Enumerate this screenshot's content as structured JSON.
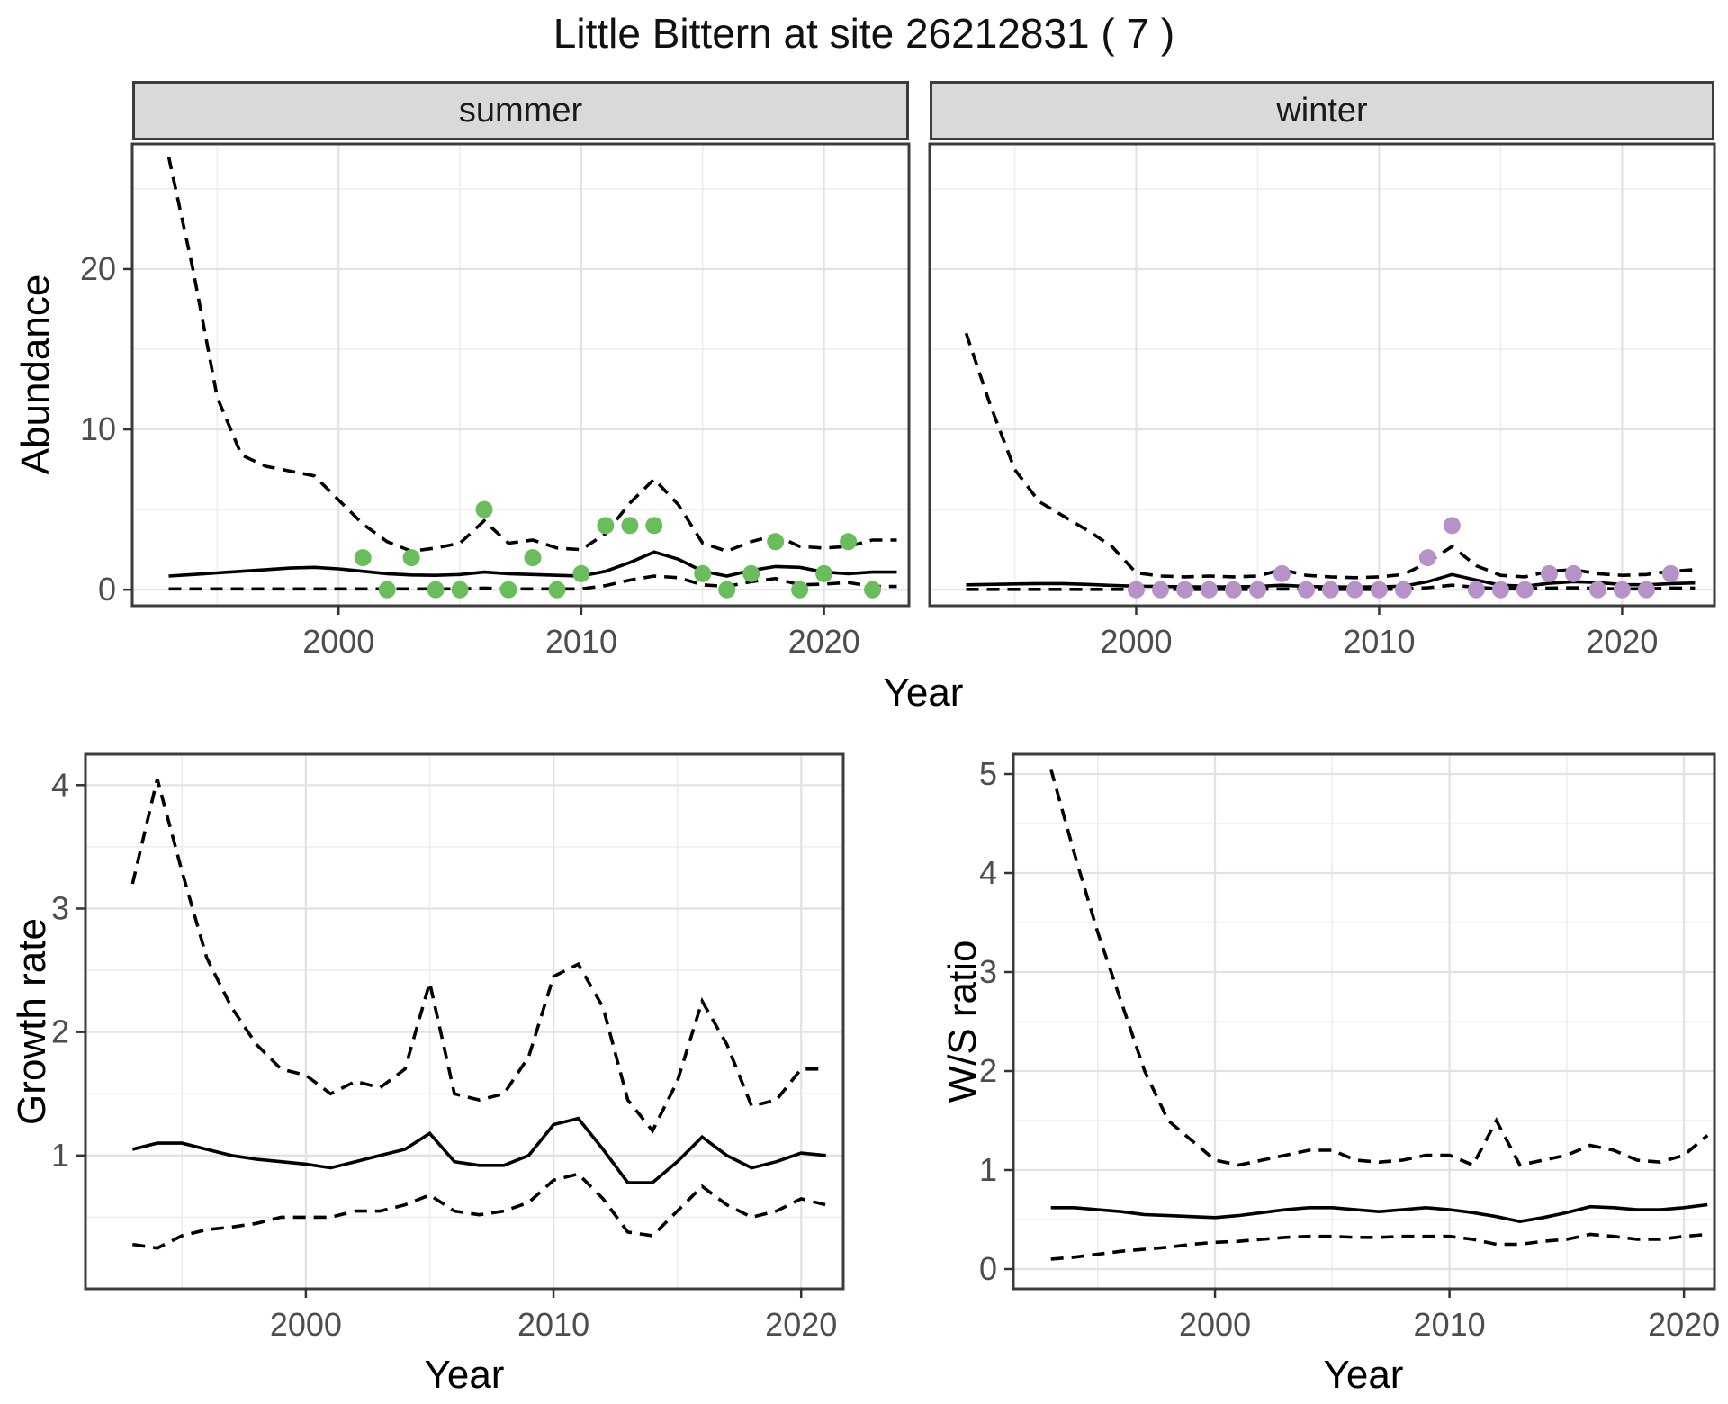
{
  "title": "Little Bittern at site 26212831 ( 7 )",
  "colors": {
    "summer_dot": "#6ABD5B",
    "winter_dot": "#B692C9",
    "fit_line": "#000000",
    "ci_line": "#000000",
    "strip_bg": "#D9D9D9",
    "panel_border": "#3C3C3C",
    "grid_major": "#E2E2E2",
    "grid_minor": "#EDEDED",
    "tick_label": "#4D4D4D",
    "title_text": "#111111"
  },
  "chart_data": [
    {
      "id": "abundance",
      "type": "line",
      "title": "",
      "xlabel": "Year",
      "ylabel": "Abundance",
      "x_ticks": [
        2000,
        2010,
        2020
      ],
      "x_minor": [
        1995,
        2005,
        2015
      ],
      "y_ticks": [
        0,
        10,
        20
      ],
      "y_minor": [
        5,
        15,
        25
      ],
      "xlim": [
        1991.5,
        2023.8
      ],
      "ylim": [
        0,
        27.8
      ],
      "legend": "none",
      "x": [
        1993,
        1994,
        1995,
        1996,
        1997,
        1998,
        1999,
        2000,
        2001,
        2002,
        2003,
        2004,
        2005,
        2006,
        2007,
        2008,
        2009,
        2010,
        2011,
        2012,
        2013,
        2014,
        2015,
        2016,
        2017,
        2018,
        2019,
        2020,
        2021,
        2022,
        2023
      ],
      "facets": [
        {
          "label": "summer",
          "dot_color": "#6ABD5B",
          "fit": [
            0.85,
            0.95,
            1.05,
            1.15,
            1.25,
            1.35,
            1.4,
            1.3,
            1.15,
            1.0,
            0.92,
            0.9,
            0.95,
            1.1,
            1.0,
            0.95,
            0.9,
            0.85,
            1.15,
            1.7,
            2.35,
            1.9,
            1.15,
            0.85,
            1.2,
            1.45,
            1.4,
            1.1,
            1.0,
            1.1,
            1.1
          ],
          "upper": [
            27,
            20,
            12,
            8.4,
            7.7,
            7.4,
            7.1,
            5.6,
            4.1,
            3.0,
            2.4,
            2.6,
            2.9,
            4.3,
            2.9,
            3.1,
            2.6,
            2.5,
            3.5,
            5.4,
            6.9,
            5.3,
            2.9,
            2.4,
            3.0,
            3.4,
            2.7,
            2.6,
            2.7,
            3.1,
            3.1
          ],
          "lower": [
            0.05,
            0.05,
            0.05,
            0.05,
            0.05,
            0.05,
            0.05,
            0.05,
            0.05,
            0.05,
            0.05,
            0.05,
            0.05,
            0.1,
            0.05,
            0.05,
            0.05,
            0.05,
            0.25,
            0.6,
            0.85,
            0.75,
            0.3,
            0.2,
            0.5,
            0.7,
            0.3,
            0.35,
            0.45,
            0.2,
            0.2
          ],
          "obs_x": [
            2001,
            2002,
            2003,
            2004,
            2005,
            2006,
            2007,
            2008,
            2009,
            2010,
            2011,
            2012,
            2013,
            2015,
            2016,
            2017,
            2018,
            2019,
            2020,
            2021,
            2022
          ],
          "obs_y": [
            2,
            0,
            2,
            0,
            0,
            5,
            0,
            2,
            0,
            1,
            4,
            4,
            4,
            1,
            0,
            1,
            3,
            0,
            1,
            3,
            0
          ]
        },
        {
          "label": "winter",
          "dot_color": "#B692C9",
          "fit": [
            0.3,
            0.33,
            0.36,
            0.38,
            0.38,
            0.33,
            0.27,
            0.22,
            0.2,
            0.18,
            0.18,
            0.18,
            0.2,
            0.28,
            0.2,
            0.17,
            0.17,
            0.18,
            0.22,
            0.5,
            0.95,
            0.6,
            0.28,
            0.22,
            0.4,
            0.5,
            0.45,
            0.32,
            0.3,
            0.38,
            0.42
          ],
          "upper": [
            16,
            11.5,
            7.5,
            5.5,
            4.6,
            3.7,
            2.7,
            1.05,
            0.85,
            0.8,
            0.85,
            0.8,
            0.85,
            1.25,
            0.9,
            0.8,
            0.75,
            0.8,
            0.95,
            1.7,
            2.7,
            1.5,
            0.9,
            0.8,
            1.15,
            1.25,
            1.0,
            0.9,
            0.95,
            1.15,
            1.25
          ],
          "lower": [
            0.02,
            0.02,
            0.02,
            0.02,
            0.02,
            0.02,
            0.02,
            0.02,
            0.02,
            0.02,
            0.02,
            0.02,
            0.02,
            0.05,
            0.02,
            0.02,
            0.02,
            0.02,
            0.05,
            0.12,
            0.28,
            0.15,
            0.05,
            0.05,
            0.1,
            0.12,
            0.08,
            0.05,
            0.05,
            0.1,
            0.1
          ],
          "obs_x": [
            2000,
            2001,
            2002,
            2003,
            2004,
            2005,
            2006,
            2007,
            2008,
            2009,
            2010,
            2011,
            2012,
            2013,
            2014,
            2015,
            2016,
            2017,
            2018,
            2019,
            2020,
            2021,
            2022
          ],
          "obs_y": [
            0,
            0,
            0,
            0,
            0,
            0,
            1,
            0,
            0,
            0,
            0,
            0,
            2,
            4,
            0,
            0,
            0,
            1,
            1,
            0,
            0,
            0,
            1
          ]
        }
      ]
    },
    {
      "id": "growth",
      "type": "line",
      "title": "",
      "xlabel": "Year",
      "ylabel": "Growth rate",
      "x_ticks": [
        2000,
        2010,
        2020
      ],
      "x_minor": [
        1995,
        2005,
        2015
      ],
      "y_ticks": [
        1,
        2,
        3,
        4
      ],
      "y_minor": [
        0.5,
        1.5,
        2.5,
        3.5
      ],
      "xlim": [
        1991.1,
        2021.7
      ],
      "ylim": [
        0,
        4.25
      ],
      "legend": "none",
      "x": [
        1993,
        1994,
        1995,
        1996,
        1997,
        1998,
        1999,
        2000,
        2001,
        2002,
        2003,
        2004,
        2005,
        2006,
        2007,
        2008,
        2009,
        2010,
        2011,
        2012,
        2013,
        2014,
        2015,
        2016,
        2017,
        2018,
        2019,
        2020,
        2021
      ],
      "fit": [
        1.05,
        1.1,
        1.1,
        1.05,
        1.0,
        0.97,
        0.95,
        0.93,
        0.9,
        0.95,
        1.0,
        1.05,
        1.18,
        0.95,
        0.92,
        0.92,
        1.0,
        1.25,
        1.3,
        1.05,
        0.78,
        0.78,
        0.95,
        1.15,
        1.0,
        0.9,
        0.95,
        1.02,
        1.0
      ],
      "upper": [
        3.2,
        4.05,
        3.3,
        2.6,
        2.2,
        1.9,
        1.7,
        1.65,
        1.5,
        1.6,
        1.55,
        1.7,
        2.4,
        1.5,
        1.45,
        1.5,
        1.8,
        2.45,
        2.55,
        2.2,
        1.45,
        1.2,
        1.6,
        2.25,
        1.9,
        1.4,
        1.45,
        1.7,
        1.7
      ],
      "lower": [
        0.28,
        0.25,
        0.35,
        0.4,
        0.42,
        0.45,
        0.5,
        0.5,
        0.5,
        0.55,
        0.55,
        0.6,
        0.68,
        0.55,
        0.52,
        0.55,
        0.62,
        0.8,
        0.85,
        0.65,
        0.38,
        0.35,
        0.55,
        0.75,
        0.6,
        0.5,
        0.55,
        0.65,
        0.6
      ]
    },
    {
      "id": "ws",
      "type": "line",
      "title": "",
      "xlabel": "Year",
      "ylabel": "W/S ratio",
      "x_ticks": [
        2000,
        2010,
        2020
      ],
      "x_minor": [
        1995,
        2005,
        2015
      ],
      "y_ticks": [
        0,
        1,
        2,
        3,
        4,
        5
      ],
      "y_minor": [
        0.5,
        1.5,
        2.5,
        3.5,
        4.5
      ],
      "xlim": [
        1991.4,
        2021.3
      ],
      "ylim": [
        0,
        5.2
      ],
      "legend": "none",
      "x": [
        1993,
        1994,
        1995,
        1996,
        1997,
        1998,
        1999,
        2000,
        2001,
        2002,
        2003,
        2004,
        2005,
        2006,
        2007,
        2008,
        2009,
        2010,
        2011,
        2012,
        2013,
        2014,
        2015,
        2016,
        2017,
        2018,
        2019,
        2020,
        2021
      ],
      "fit": [
        0.62,
        0.62,
        0.6,
        0.58,
        0.55,
        0.54,
        0.53,
        0.52,
        0.54,
        0.57,
        0.6,
        0.62,
        0.62,
        0.6,
        0.58,
        0.6,
        0.62,
        0.6,
        0.57,
        0.53,
        0.48,
        0.52,
        0.57,
        0.63,
        0.62,
        0.6,
        0.6,
        0.62,
        0.65
      ],
      "upper": [
        5.05,
        4.2,
        3.4,
        2.7,
        2.0,
        1.5,
        1.3,
        1.1,
        1.05,
        1.1,
        1.15,
        1.2,
        1.2,
        1.1,
        1.08,
        1.1,
        1.15,
        1.15,
        1.05,
        1.5,
        1.05,
        1.1,
        1.15,
        1.25,
        1.2,
        1.1,
        1.08,
        1.15,
        1.35
      ],
      "lower": [
        0.1,
        0.12,
        0.15,
        0.18,
        0.2,
        0.22,
        0.25,
        0.27,
        0.28,
        0.3,
        0.32,
        0.33,
        0.33,
        0.32,
        0.32,
        0.33,
        0.33,
        0.33,
        0.3,
        0.25,
        0.25,
        0.28,
        0.3,
        0.35,
        0.33,
        0.3,
        0.3,
        0.33,
        0.35
      ]
    }
  ]
}
